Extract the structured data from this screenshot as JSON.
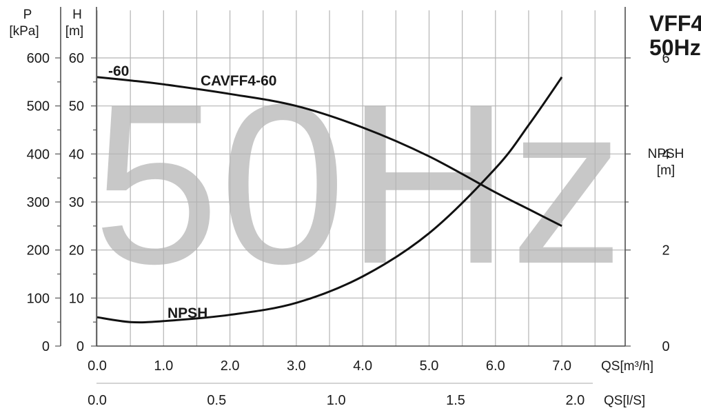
{
  "chart_data": {
    "type": "line",
    "title": "VFF4",
    "subtitle": "50Hz",
    "watermark": "50Hz",
    "axes": {
      "p": {
        "label": "P",
        "unit": "[kPa]",
        "ticks": [
          "0",
          "100",
          "200",
          "300",
          "400",
          "500",
          "600"
        ],
        "range": [
          0,
          600
        ]
      },
      "h": {
        "label": "H",
        "unit": "[m]",
        "ticks": [
          "0",
          "10",
          "20",
          "30",
          "40",
          "50",
          "60"
        ],
        "range": [
          0,
          60
        ]
      },
      "npsh": {
        "label": "NPSH",
        "unit": "[m]",
        "ticks": [
          "0",
          "2",
          "4",
          "6"
        ],
        "range": [
          0,
          6
        ]
      },
      "qs_m3h": {
        "label": "QS[m³/h]",
        "ticks": [
          "0.0",
          "1.0",
          "2.0",
          "3.0",
          "4.0",
          "5.0",
          "6.0",
          "7.0"
        ],
        "range": [
          0,
          8
        ]
      },
      "qs_ls": {
        "label": "QS[l/S]",
        "ticks": [
          "0.0",
          "0.5",
          "1.0",
          "1.5",
          "2.0"
        ],
        "values": [
          0,
          0.5,
          1.0,
          1.5,
          2.0
        ]
      }
    },
    "grid": true,
    "series": [
      {
        "name": "CAVFF4-60",
        "tag": "-60",
        "axis": "h",
        "x": [
          0.0,
          0.5,
          1.0,
          2.0,
          3.0,
          4.0,
          5.0,
          6.0,
          6.5,
          7.0
        ],
        "y": [
          56.0,
          55.3,
          54.5,
          52.5,
          50.0,
          45.5,
          39.5,
          32.0,
          28.5,
          25.0
        ]
      },
      {
        "name": "NPSH",
        "axis": "npsh",
        "x": [
          0.0,
          0.5,
          1.0,
          2.0,
          3.0,
          4.0,
          5.0,
          6.0,
          6.5,
          7.0
        ],
        "y": [
          0.6,
          0.5,
          0.52,
          0.65,
          0.9,
          1.45,
          2.35,
          3.7,
          4.6,
          5.6
        ]
      }
    ]
  }
}
